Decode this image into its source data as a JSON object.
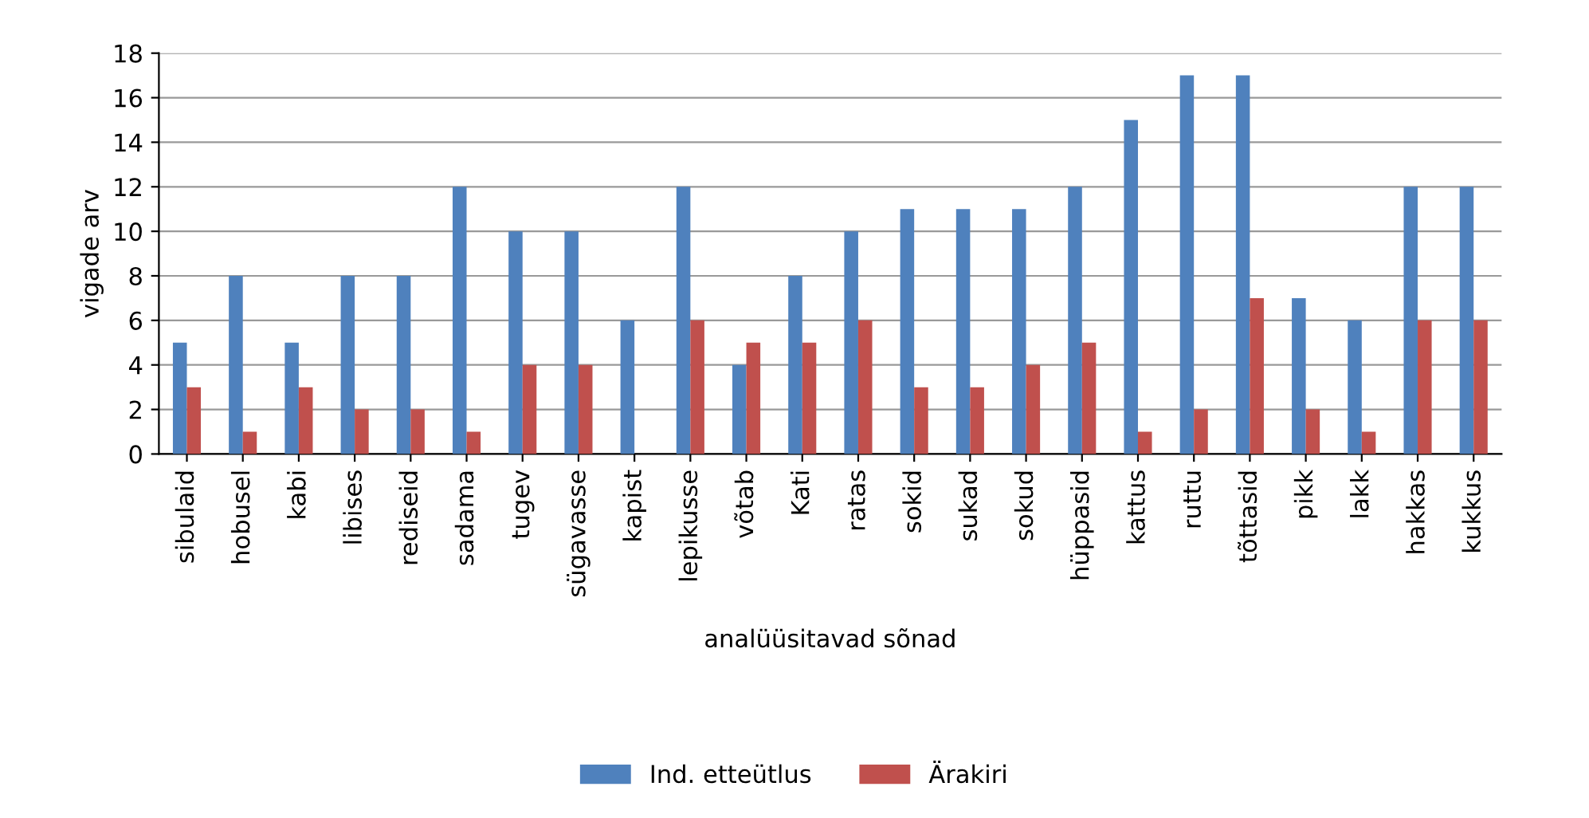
{
  "chart_data": {
    "type": "bar",
    "xlabel": "analüüsitavad sõnad",
    "ylabel": "vigade arv",
    "categories": [
      "sibulaid",
      "hobusel",
      "kabi",
      "libises",
      "rediseid",
      "sadama",
      "tugev",
      "sügavasse",
      "kapist",
      "lepikusse",
      "võtab",
      "Kati",
      "ratas",
      "sokid",
      "sukad",
      "sokud",
      "hüppasid",
      "kattus",
      "ruttu",
      "tõttasid",
      "pikk",
      "lakk",
      "hakkas",
      "kukkus"
    ],
    "series": [
      {
        "name": "Ind. etteütlus",
        "color": "#4f81bd",
        "values": [
          5,
          8,
          5,
          8,
          8,
          12,
          10,
          10,
          6,
          12,
          4,
          8,
          10,
          11,
          11,
          11,
          12,
          15,
          17,
          17,
          7,
          6,
          12,
          12
        ]
      },
      {
        "name": "Ärakiri",
        "color": "#c0504d",
        "values": [
          3,
          1,
          3,
          2,
          2,
          1,
          4,
          4,
          0,
          6,
          5,
          5,
          6,
          3,
          3,
          4,
          5,
          1,
          2,
          7,
          2,
          1,
          6,
          6
        ]
      }
    ],
    "ylim": [
      0,
      18
    ],
    "yticks": [
      0,
      2,
      4,
      6,
      8,
      10,
      12,
      14,
      16,
      18
    ],
    "grid": "y",
    "legend": "bottom"
  }
}
